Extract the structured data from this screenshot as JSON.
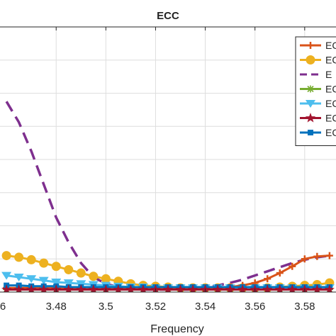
{
  "chart_data": {
    "type": "line",
    "title": "ECC",
    "xlabel": "Frequency",
    "ylabel": "",
    "xlim": [
      3.4574,
      3.5926
    ],
    "ylim": [
      0,
      0.0032
    ],
    "grid": true,
    "legend_position": "top-right",
    "x_ticks": [
      3.48,
      3.5,
      3.52,
      3.54,
      3.56,
      3.58
    ],
    "x_tick_labels": [
      "3.48",
      "3.5",
      "3.52",
      "3.54",
      "3.56",
      "3.58"
    ],
    "x_tick_label_partial": "6",
    "y_ticks": [
      0.0004,
      0.0008,
      0.0012,
      0.0016,
      0.002,
      0.0024,
      0.0028
    ],
    "legend_labels": [
      "EC",
      "EC",
      "E",
      "EC",
      "EC",
      "EC",
      "EC"
    ],
    "x": [
      3.46,
      3.465,
      3.47,
      3.475,
      3.48,
      3.485,
      3.49,
      3.495,
      3.5,
      3.505,
      3.51,
      3.515,
      3.52,
      3.525,
      3.53,
      3.535,
      3.54,
      3.545,
      3.55,
      3.555,
      3.56,
      3.565,
      3.57,
      3.575,
      3.58,
      3.585,
      3.59
    ],
    "series": [
      {
        "color": "#d95319",
        "style": "solid",
        "marker": "plus",
        "values": [
          5e-05,
          5e-05,
          5e-05,
          5e-05,
          5e-05,
          5e-05,
          5e-05,
          5e-05,
          5e-05,
          5e-05,
          5e-05,
          5e-05,
          5e-05,
          5e-05,
          5e-05,
          5e-05,
          5e-05,
          5e-05,
          6e-05,
          8e-05,
          0.00011,
          0.00016,
          0.00023,
          0.00031,
          0.0004,
          0.00043,
          0.00044
        ]
      },
      {
        "color": "#edb120",
        "style": "solid",
        "marker": "circle",
        "values": [
          0.00044,
          0.00042,
          0.00039,
          0.00035,
          0.00031,
          0.00027,
          0.00023,
          0.00019,
          0.00016,
          0.00013,
          0.0001,
          8e-05,
          7e-05,
          6e-05,
          5e-05,
          5e-05,
          5e-05,
          5e-05,
          5e-05,
          5e-05,
          5e-05,
          5e-05,
          6e-05,
          7e-05,
          8e-05,
          9e-05,
          0.00011
        ]
      },
      {
        "color": "#7e2f8e",
        "style": "dashed",
        "marker": "none",
        "values": [
          0.0023,
          0.00205,
          0.0017,
          0.0013,
          0.0009,
          0.0006,
          0.00035,
          0.00018,
          0.0001,
          6e-05,
          4e-05,
          3e-05,
          3e-05,
          3e-05,
          3e-05,
          3e-05,
          5e-05,
          8e-05,
          0.00011,
          0.00015,
          0.0002,
          0.00025,
          0.0003,
          0.00035,
          0.00039,
          0.00042,
          0.00044
        ]
      },
      {
        "color": "#77ac30",
        "style": "solid",
        "marker": "asterisk",
        "values": [
          3e-05,
          3e-05,
          3e-05,
          3e-05,
          3e-05,
          3e-05,
          3e-05,
          3e-05,
          3e-05,
          3e-05,
          3e-05,
          3e-05,
          3e-05,
          3e-05,
          3e-05,
          3e-05,
          3e-05,
          3e-05,
          3e-05,
          3e-05,
          3e-05,
          3e-05,
          3e-05,
          3e-05,
          3e-05,
          3e-05,
          3e-05
        ]
      },
      {
        "color": "#4dbeee",
        "style": "solid",
        "marker": "triangle-down",
        "values": [
          0.0002,
          0.00018,
          0.00016,
          0.00014,
          0.00012,
          0.00011,
          0.0001,
          9e-05,
          8e-05,
          7e-05,
          6e-05,
          6e-05,
          5e-05,
          5e-05,
          5e-05,
          5e-05,
          5e-05,
          5e-05,
          5e-05,
          5e-05,
          5e-05,
          5e-05,
          5e-05,
          5e-05,
          5e-05,
          5e-05,
          5e-05
        ]
      },
      {
        "color": "#a2142f",
        "style": "solid",
        "marker": "star",
        "values": [
          3e-05,
          3e-05,
          3e-05,
          3e-05,
          3e-05,
          3e-05,
          3e-05,
          3e-05,
          3e-05,
          3e-05,
          3e-05,
          3e-05,
          3e-05,
          3e-05,
          3e-05,
          3e-05,
          3e-05,
          3e-05,
          3e-05,
          3e-05,
          3e-05,
          3e-05,
          3e-05,
          3e-05,
          3e-05,
          3e-05,
          3e-05
        ]
      },
      {
        "color": "#0072bd",
        "style": "solid",
        "marker": "square",
        "values": [
          8e-05,
          8e-05,
          7e-05,
          7e-05,
          7e-05,
          6e-05,
          6e-05,
          6e-05,
          6e-05,
          6e-05,
          6e-05,
          6e-05,
          6e-05,
          6e-05,
          6e-05,
          6e-05,
          6e-05,
          6e-05,
          6e-05,
          6e-05,
          6e-05,
          6e-05,
          6e-05,
          6e-05,
          6e-05,
          6e-05,
          6e-05
        ]
      }
    ]
  }
}
